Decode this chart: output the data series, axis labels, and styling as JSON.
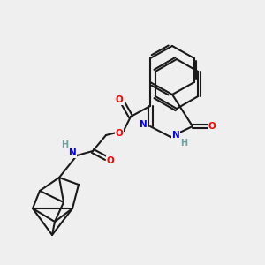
{
  "background_color": "#efefef",
  "bond_color": "#1a1a1a",
  "atom_colors": {
    "O": "#ff0000",
    "N": "#0000ff",
    "H": "#6fa0a0",
    "C": "#1a1a1a"
  },
  "font_size_atoms": 7.5,
  "lw": 1.5
}
